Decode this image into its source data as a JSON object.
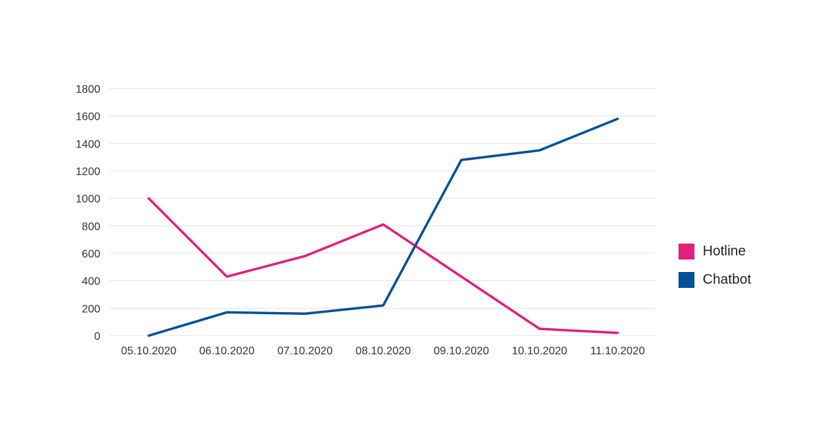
{
  "chart_data": {
    "type": "line",
    "categories": [
      "05.10.2020",
      "06.10.2020",
      "07.10.2020",
      "08.10.2020",
      "09.10.2020",
      "10.10.2020",
      "11.10.2020"
    ],
    "series": [
      {
        "name": "Hotline",
        "color": "#e0207a",
        "values": [
          1000,
          430,
          580,
          810,
          430,
          50,
          20
        ]
      },
      {
        "name": "Chatbot",
        "color": "#064f98",
        "values": [
          0,
          170,
          160,
          220,
          1280,
          1350,
          1580
        ]
      }
    ],
    "y_ticks": [
      "0",
      "200",
      "400",
      "600",
      "800",
      "1000",
      "1200",
      "1400",
      "1600",
      "1800"
    ],
    "ylim": [
      0,
      1800
    ],
    "grid": true,
    "legend_position": "right"
  }
}
